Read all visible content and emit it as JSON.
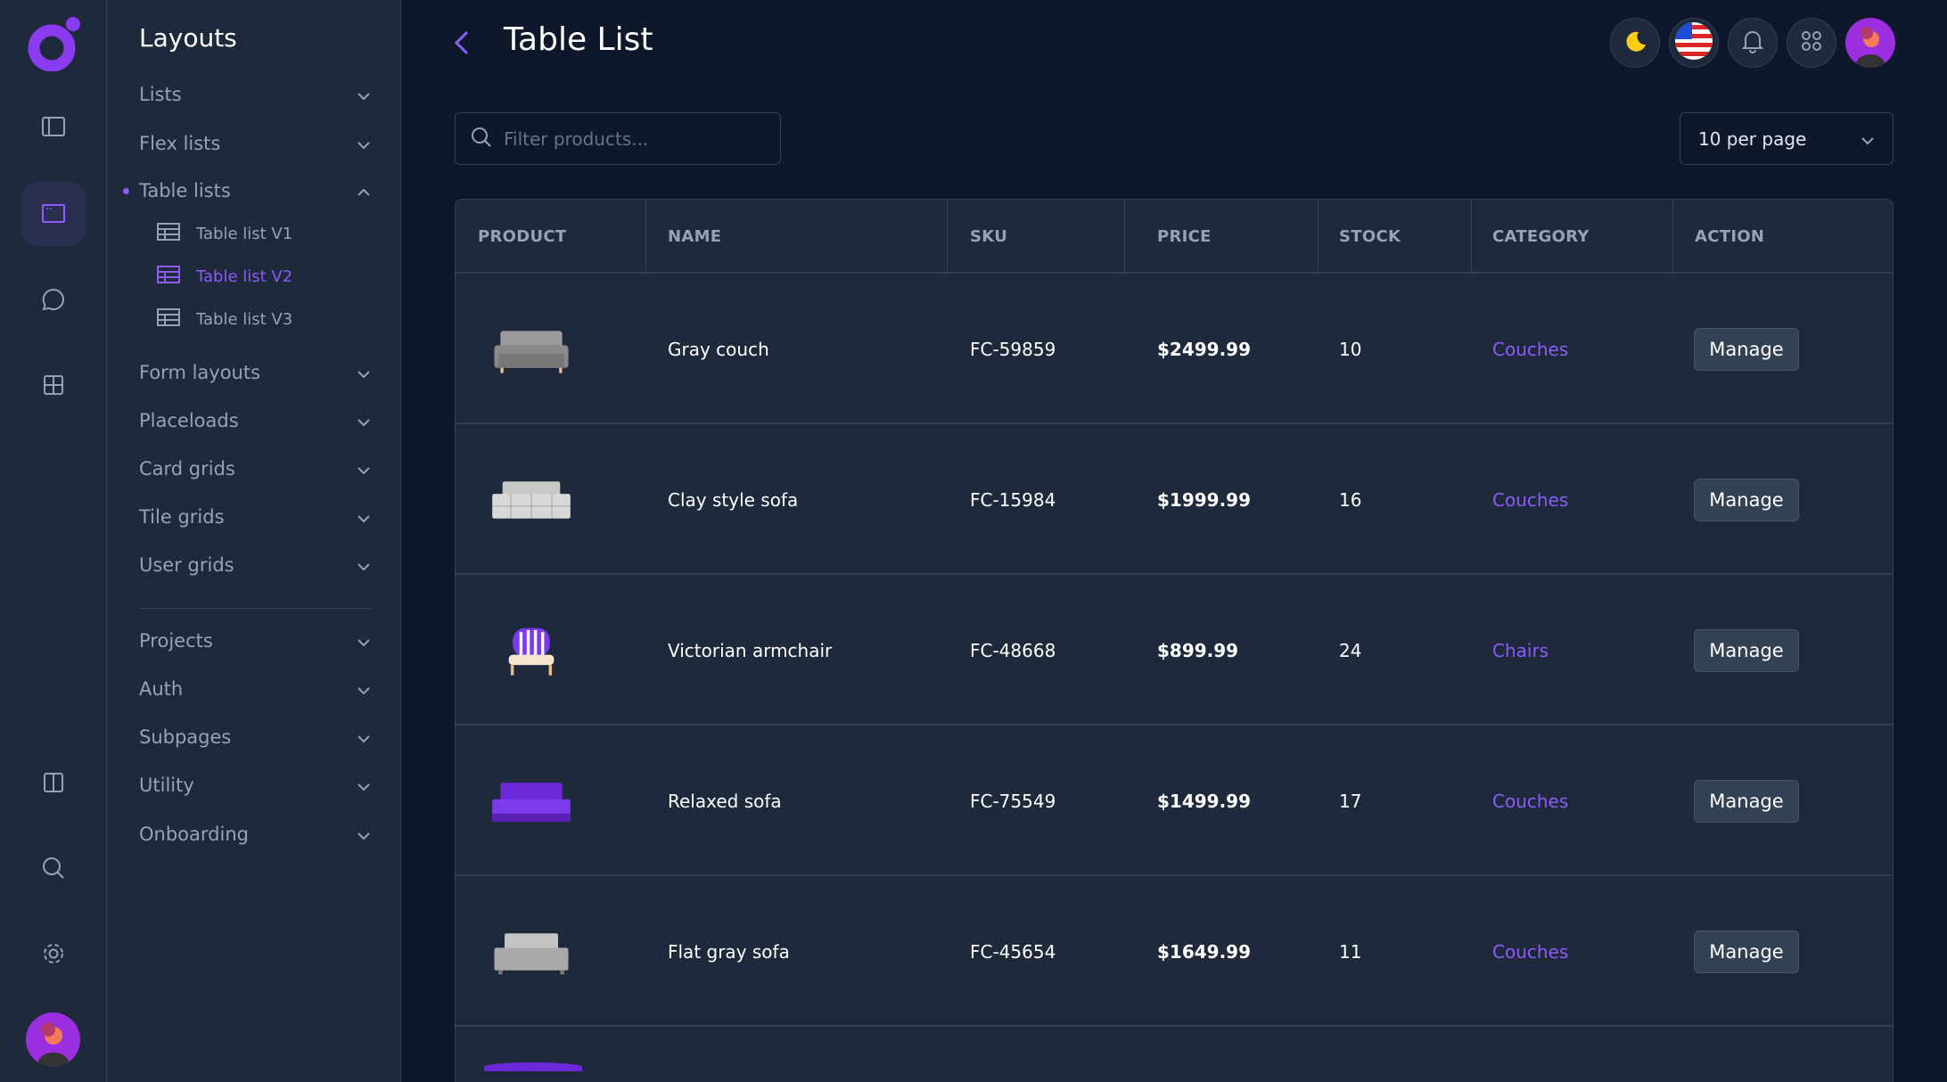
{
  "sidebar": {
    "title": "Layouts",
    "items": [
      {
        "label": "Lists",
        "expanded": false
      },
      {
        "label": "Flex lists",
        "expanded": false
      },
      {
        "label": "Table lists",
        "expanded": true,
        "active": true
      },
      {
        "label": "Form layouts",
        "expanded": false
      },
      {
        "label": "Placeloads",
        "expanded": false
      },
      {
        "label": "Card grids",
        "expanded": false
      },
      {
        "label": "Tile grids",
        "expanded": false
      },
      {
        "label": "User grids",
        "expanded": false
      },
      {
        "label": "Projects",
        "expanded": false
      },
      {
        "label": "Auth",
        "expanded": false
      },
      {
        "label": "Subpages",
        "expanded": false
      },
      {
        "label": "Utility",
        "expanded": false
      },
      {
        "label": "Onboarding",
        "expanded": false
      }
    ],
    "subitems": [
      {
        "label": "Table list V1"
      },
      {
        "label": "Table list V2",
        "active": true
      },
      {
        "label": "Table list V3"
      }
    ]
  },
  "header": {
    "title": "Table List"
  },
  "filter": {
    "placeholder": "Filter products...",
    "value": ""
  },
  "per_page": {
    "selected": "10 per page"
  },
  "table": {
    "columns": [
      "PRODUCT",
      "NAME",
      "SKU",
      "PRICE",
      "STOCK",
      "CATEGORY",
      "ACTION"
    ],
    "rows": [
      {
        "image": "gray-couch",
        "name": "Gray couch",
        "sku": "FC-59859",
        "price": "$2499.99",
        "stock": "10",
        "category": "Couches",
        "action": "Manage"
      },
      {
        "image": "clay-sofa",
        "name": "Clay style sofa",
        "sku": "FC-15984",
        "price": "$1999.99",
        "stock": "16",
        "category": "Couches",
        "action": "Manage"
      },
      {
        "image": "victorian-armchair",
        "name": "Victorian armchair",
        "sku": "FC-48668",
        "price": "$899.99",
        "stock": "24",
        "category": "Chairs",
        "action": "Manage"
      },
      {
        "image": "relaxed-sofa",
        "name": "Relaxed sofa",
        "sku": "FC-75549",
        "price": "$1499.99",
        "stock": "17",
        "category": "Couches",
        "action": "Manage"
      },
      {
        "image": "flat-gray-sofa",
        "name": "Flat gray sofa",
        "sku": "FC-45654",
        "price": "$1649.99",
        "stock": "11",
        "category": "Couches",
        "action": "Manage"
      }
    ]
  },
  "colors": {
    "accent": "#8b5cf6",
    "background": "#0f172a",
    "panel": "#1e293b",
    "border": "#334155",
    "moon": "#facc15"
  }
}
